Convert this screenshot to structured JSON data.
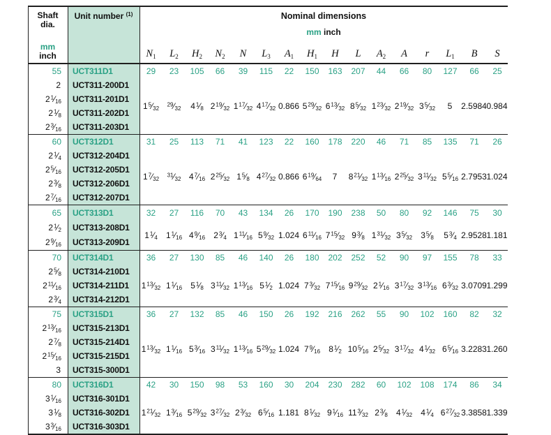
{
  "colors": {
    "accent_text": "#2aa185",
    "unit_column_bg": "#c6e4d8"
  },
  "header": {
    "shaft_dia_line1": "Shaft",
    "shaft_dia_line2": "dia.",
    "mm_label": "mm",
    "inch_label": "inch",
    "unit_number_label": "Unit number",
    "unit_number_note": "(1)",
    "nominal_dimensions_label": "Nominal dimensions",
    "nominal_mm_label": "mm",
    "nominal_inch_label": "inch",
    "symbols": [
      [
        "N",
        "1"
      ],
      [
        "L",
        "2"
      ],
      [
        "H",
        "2"
      ],
      [
        "N",
        "2"
      ],
      [
        "N",
        ""
      ],
      [
        "L",
        "3"
      ],
      [
        "A",
        "1"
      ],
      [
        "H",
        "1"
      ],
      [
        "H",
        ""
      ],
      [
        "L",
        ""
      ],
      [
        "A",
        "2"
      ],
      [
        "A",
        ""
      ],
      [
        "r",
        ""
      ],
      [
        "L",
        "1"
      ],
      [
        "B",
        ""
      ],
      [
        "S",
        ""
      ]
    ]
  },
  "groups": [
    {
      "shaft_mm": "55",
      "unit_mm": "UCT311D1",
      "mm_values": [
        "29",
        "23",
        "105",
        "66",
        "39",
        "115",
        "22",
        "150",
        "163",
        "207",
        "44",
        "66",
        "80",
        "127",
        "66",
        "25"
      ],
      "inch_rows": [
        {
          "shaft": "2",
          "unit": "UCT311-200D1"
        },
        {
          "shaft": "2 1/16",
          "unit": "UCT311-201D1"
        },
        {
          "shaft": "2 1/8",
          "unit": "UCT311-202D1"
        },
        {
          "shaft": "2 3/16",
          "unit": "UCT311-203D1"
        }
      ],
      "inch_values": [
        "1 5/32",
        "29/32",
        "4 1/8",
        "2 19/32",
        "1 17/32",
        "4 17/32",
        "0.866",
        "5 29/32",
        "6 13/32",
        "8 5/32",
        "1 23/32",
        "2 19/32",
        "3 5/32",
        "5",
        "2.5984",
        "0.984"
      ]
    },
    {
      "shaft_mm": "60",
      "unit_mm": "UCT312D1",
      "mm_values": [
        "31",
        "25",
        "113",
        "71",
        "41",
        "123",
        "22",
        "160",
        "178",
        "220",
        "46",
        "71",
        "85",
        "135",
        "71",
        "26"
      ],
      "inch_rows": [
        {
          "shaft": "2 1/4",
          "unit": "UCT312-204D1"
        },
        {
          "shaft": "2 5/16",
          "unit": "UCT312-205D1"
        },
        {
          "shaft": "2 3/8",
          "unit": "UCT312-206D1"
        },
        {
          "shaft": "2 7/16",
          "unit": "UCT312-207D1"
        }
      ],
      "inch_values": [
        "1 7/32",
        "31/32",
        "4 7/16",
        "2 25/32",
        "1 5/8",
        "4 27/32",
        "0.866",
        "6 19/64",
        "7",
        "8 21/32",
        "1 13/16",
        "2 25/32",
        "3 11/32",
        "5 5/16",
        "2.7953",
        "1.024"
      ]
    },
    {
      "shaft_mm": "65",
      "unit_mm": "UCT313D1",
      "mm_values": [
        "32",
        "27",
        "116",
        "70",
        "43",
        "134",
        "26",
        "170",
        "190",
        "238",
        "50",
        "80",
        "92",
        "146",
        "75",
        "30"
      ],
      "inch_rows": [
        {
          "shaft": "2 1/2",
          "unit": "UCT313-208D1"
        },
        {
          "shaft": "2 9/16",
          "unit": "UCT313-209D1"
        }
      ],
      "inch_values": [
        "1 1/4",
        "1 1/16",
        "4 9/16",
        "2 3/4",
        "1 11/16",
        "5 9/32",
        "1.024",
        "6 11/16",
        "7 15/32",
        "9 3/8",
        "1 31/32",
        "3 5/32",
        "3 5/8",
        "5 3/4",
        "2.9528",
        "1.181"
      ]
    },
    {
      "shaft_mm": "70",
      "unit_mm": "UCT314D1",
      "mm_values": [
        "36",
        "27",
        "130",
        "85",
        "46",
        "140",
        "26",
        "180",
        "202",
        "252",
        "52",
        "90",
        "97",
        "155",
        "78",
        "33"
      ],
      "inch_rows": [
        {
          "shaft": "2 5/8",
          "unit": "UCT314-210D1"
        },
        {
          "shaft": "2 11/16",
          "unit": "UCT314-211D1"
        },
        {
          "shaft": "2 3/4",
          "unit": "UCT314-212D1"
        }
      ],
      "inch_values": [
        "1 13/32",
        "1 1/16",
        "5 1/8",
        "3 11/32",
        "1 13/16",
        "5 1/2",
        "1.024",
        "7 3/32",
        "7 15/16",
        "9 29/32",
        "2 1/16",
        "3 17/32",
        "3 13/16",
        "6 3/32",
        "3.0709",
        "1.299"
      ]
    },
    {
      "shaft_mm": "75",
      "unit_mm": "UCT315D1",
      "mm_values": [
        "36",
        "27",
        "132",
        "85",
        "46",
        "150",
        "26",
        "192",
        "216",
        "262",
        "55",
        "90",
        "102",
        "160",
        "82",
        "32"
      ],
      "inch_rows": [
        {
          "shaft": "2 13/16",
          "unit": "UCT315-213D1"
        },
        {
          "shaft": "2 7/8",
          "unit": "UCT315-214D1"
        },
        {
          "shaft": "2 15/16",
          "unit": "UCT315-215D1"
        },
        {
          "shaft": "3",
          "unit": "UCT315-300D1"
        }
      ],
      "inch_values": [
        "1 13/32",
        "1 1/16",
        "5 3/16",
        "3 11/32",
        "1 13/16",
        "5 29/32",
        "1.024",
        "7 9/16",
        "8 1/2",
        "10 5/16",
        "2 5/32",
        "3 17/32",
        "4 1/32",
        "6 5/16",
        "3.2283",
        "1.260"
      ]
    },
    {
      "shaft_mm": "80",
      "unit_mm": "UCT316D1",
      "mm_values": [
        "42",
        "30",
        "150",
        "98",
        "53",
        "160",
        "30",
        "204",
        "230",
        "282",
        "60",
        "102",
        "108",
        "174",
        "86",
        "34"
      ],
      "inch_rows": [
        {
          "shaft": "3 1/16",
          "unit": "UCT316-301D1"
        },
        {
          "shaft": "3 1/8",
          "unit": "UCT316-302D1"
        },
        {
          "shaft": "3 3/16",
          "unit": "UCT316-303D1"
        }
      ],
      "inch_values": [
        "1 21/32",
        "1 3/16",
        "5 29/32",
        "3 27/32",
        "2 3/32",
        "6 5/16",
        "1.181",
        "8 1/32",
        "9 1/16",
        "11 3/32",
        "2 3/8",
        "4 1/32",
        "4 1/4",
        "6 27/32",
        "3.3858",
        "1.339"
      ]
    }
  ]
}
